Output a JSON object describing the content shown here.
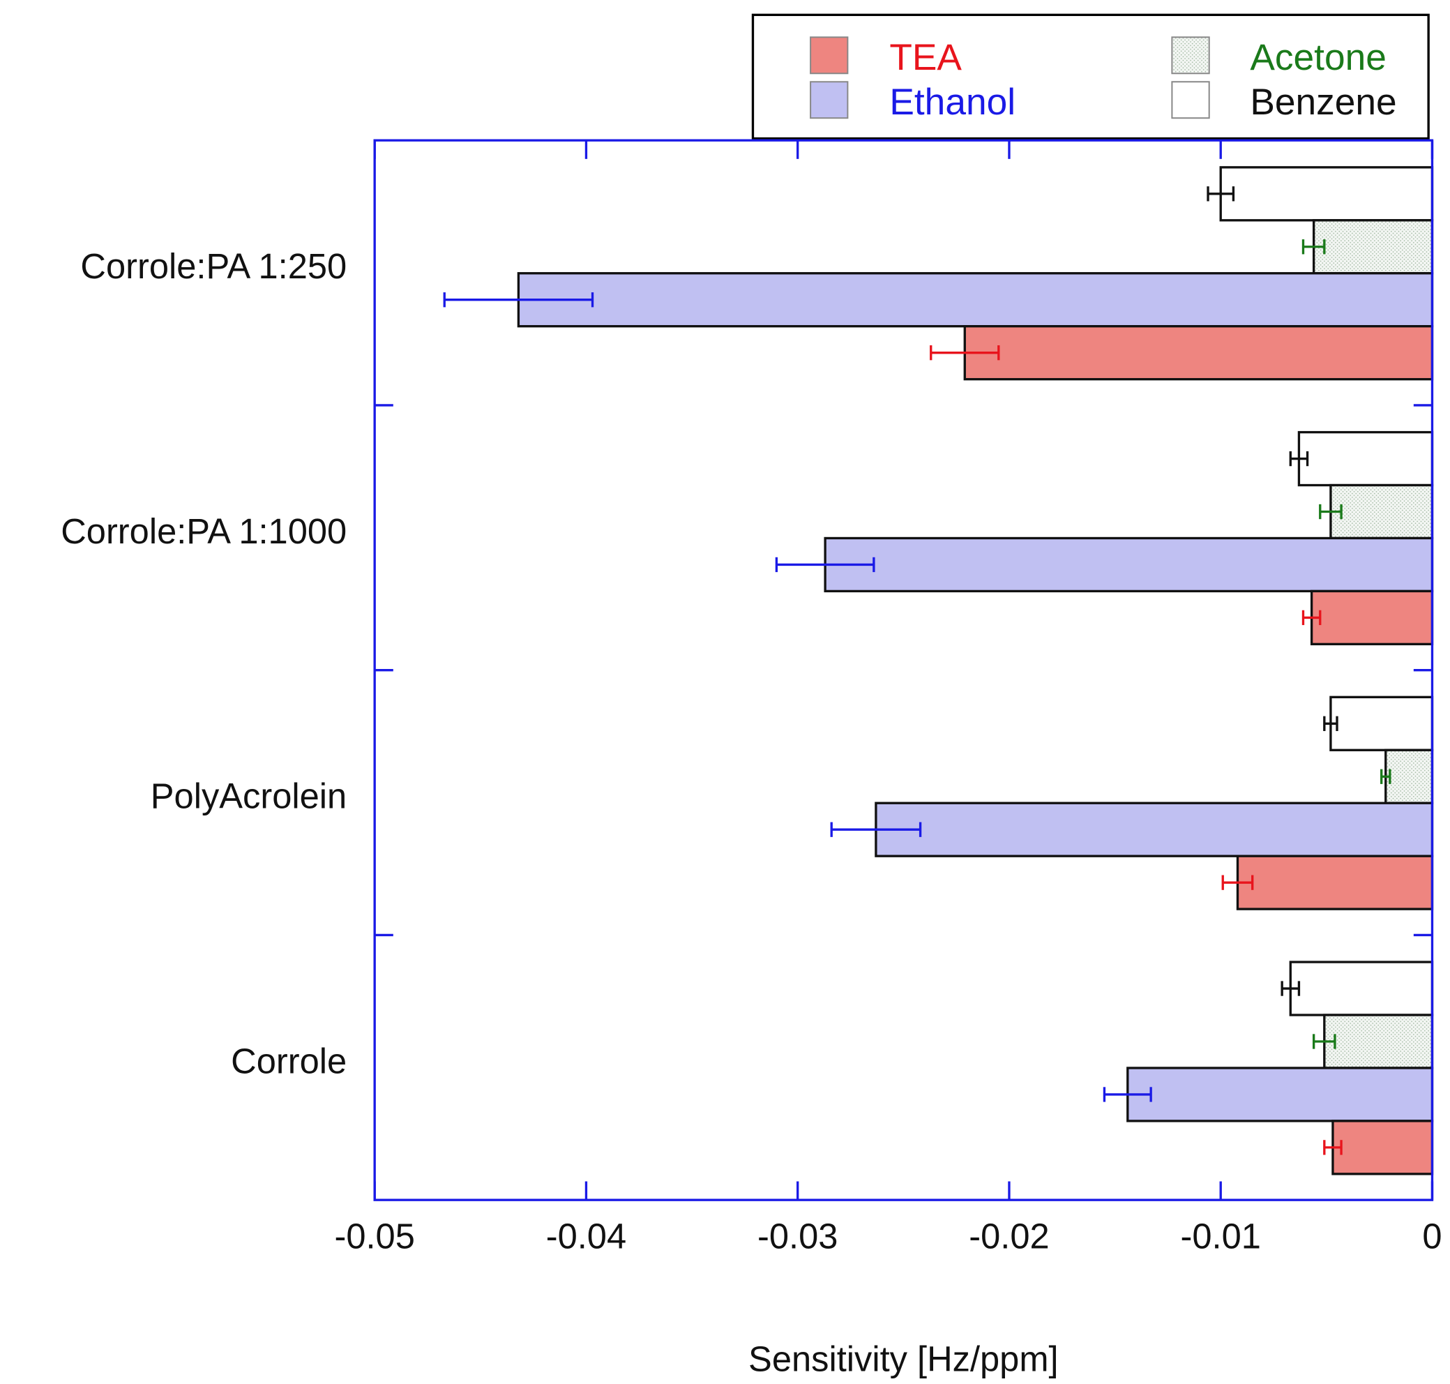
{
  "chart_data": {
    "type": "bar",
    "orientation": "horizontal",
    "title": "",
    "xlabel": "Sensitivity [Hz/ppm]",
    "ylabel": "",
    "xlim": [
      -0.05,
      0
    ],
    "xticks": [
      -0.05,
      -0.04,
      -0.03,
      -0.02,
      -0.01,
      0
    ],
    "xtick_labels": [
      "-0.05",
      "-0.04",
      "-0.03",
      "-0.02",
      "-0.01",
      "0"
    ],
    "categories": [
      "Corrole:PA 1:250",
      "Corrole:PA 1:1000",
      "PolyAcrolein",
      "Corrole"
    ],
    "legend_placement": "top-right, above plot",
    "series": [
      {
        "name": "TEA",
        "color": "#ee8580",
        "text_color": "#e8141c",
        "error_color": "#e8141c",
        "values": [
          -0.0221,
          -0.0057,
          -0.0092,
          -0.0047
        ],
        "errors": [
          0.0016,
          0.0004,
          0.0007,
          0.0004
        ]
      },
      {
        "name": "Ethanol",
        "color": "#c0c0f2",
        "text_color": "#1a1ae6",
        "error_color": "#1a1ae6",
        "values": [
          -0.0432,
          -0.0287,
          -0.0263,
          -0.0144
        ],
        "errors": [
          0.0035,
          0.0023,
          0.0021,
          0.0011
        ]
      },
      {
        "name": "Acetone",
        "color": "#eef3ee",
        "text_color": "#1a7a1a",
        "error_color": "#1a7a1a",
        "values": [
          -0.0056,
          -0.0048,
          -0.0022,
          -0.0051
        ],
        "errors": [
          0.0005,
          0.0005,
          0.0002,
          0.0005
        ]
      },
      {
        "name": "Benzene",
        "color": "#ffffff",
        "text_color": "#111111",
        "error_color": "#111111",
        "values": [
          -0.01,
          -0.0063,
          -0.0048,
          -0.0067
        ],
        "errors": [
          0.0006,
          0.0004,
          0.0003,
          0.0004
        ]
      }
    ],
    "axis_color": "#1a1ae6"
  }
}
